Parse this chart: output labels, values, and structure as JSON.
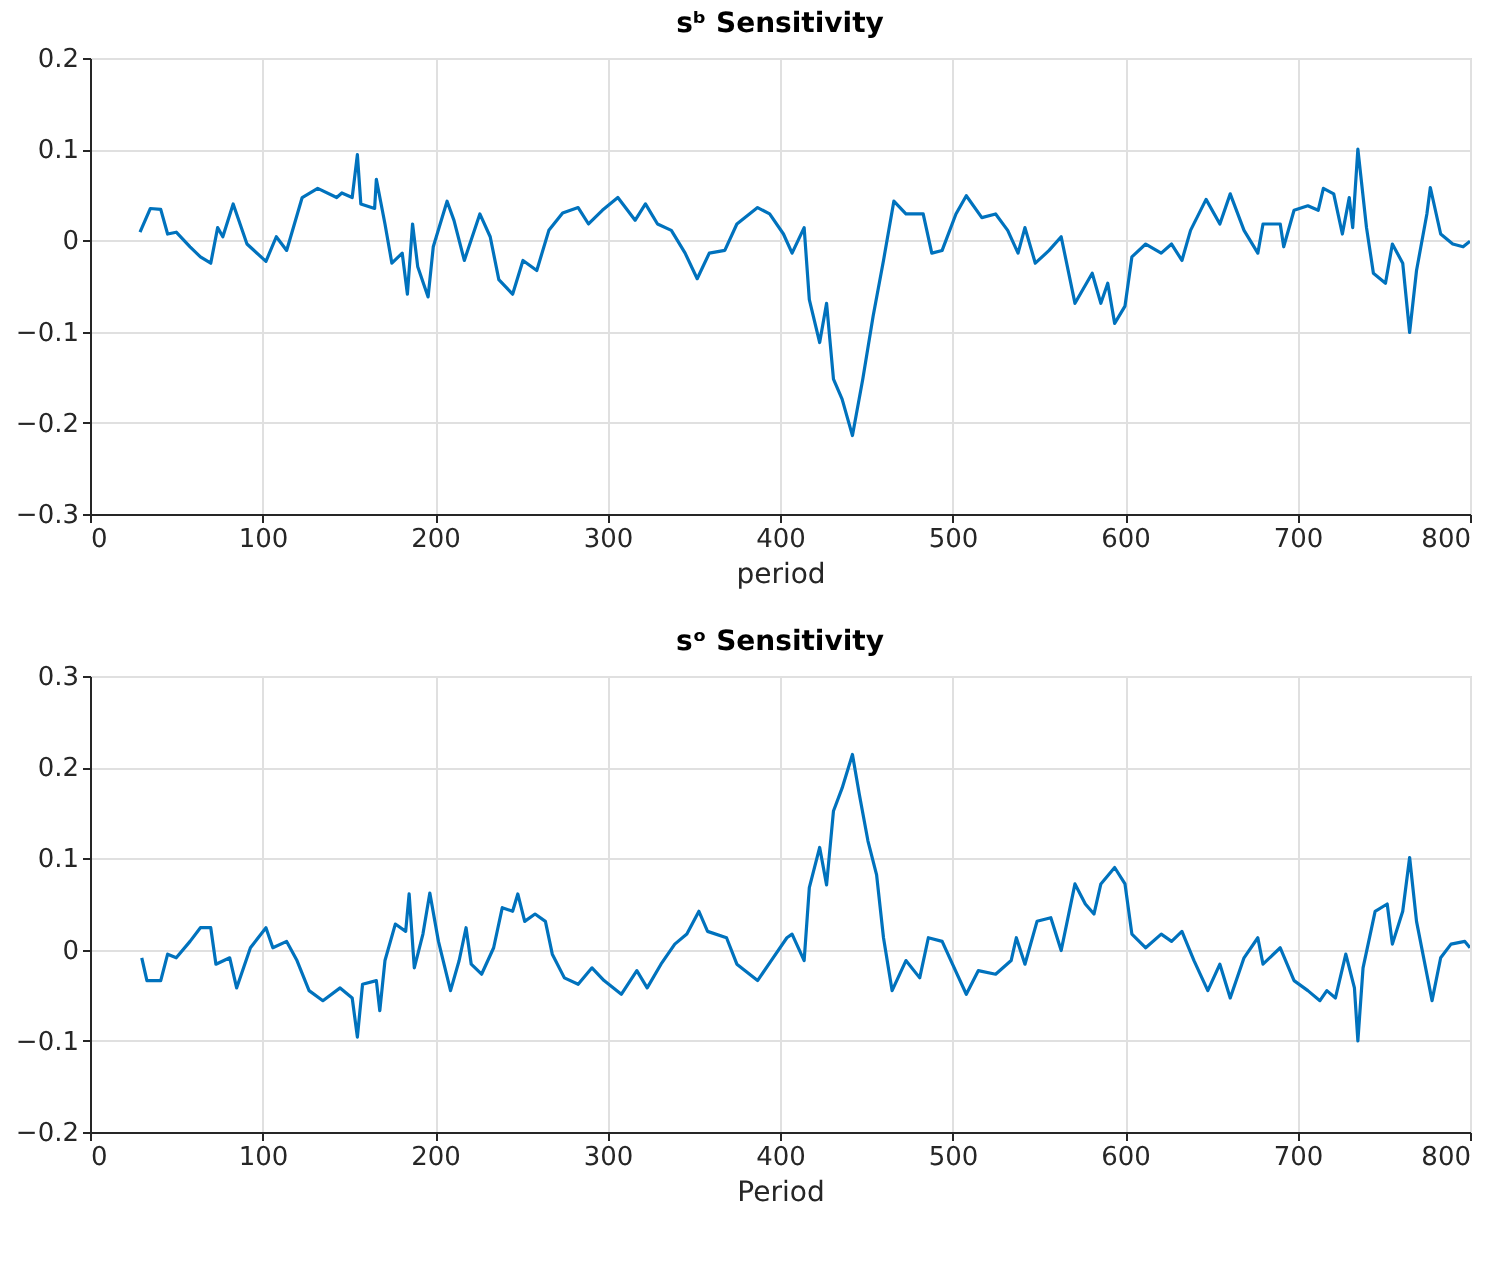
{
  "chart_data": [
    {
      "type": "line",
      "title": "sᵇ Sensitivity",
      "xlabel": "period",
      "xlim": [
        0,
        800
      ],
      "xticks": [
        0,
        100,
        200,
        300,
        400,
        500,
        600,
        700,
        800
      ],
      "ylim": [
        -0.3,
        0.2
      ],
      "yticks": [
        -0.3,
        -0.2,
        -0.1,
        0,
        0.1,
        0.2
      ],
      "grid": true,
      "series": [
        {
          "color": "#0072bd",
          "x": [
            29,
            35,
            41,
            45,
            50,
            58,
            64,
            70,
            74,
            77,
            83,
            91,
            102,
            108,
            114,
            123,
            132,
            143,
            146,
            152,
            155,
            157,
            165,
            166,
            171,
            175,
            181,
            184,
            187,
            190,
            196,
            199,
            207,
            211,
            217,
            226,
            232,
            237,
            245,
            251,
            259,
            266,
            274,
            283,
            289,
            297,
            306,
            316,
            322,
            329,
            337,
            345,
            352,
            359,
            368,
            375,
            387,
            394,
            402,
            407,
            414,
            417,
            423,
            427,
            431,
            436,
            442,
            448,
            454,
            460,
            466,
            473,
            483,
            488,
            494,
            502,
            508,
            517,
            525,
            532,
            538,
            542,
            548,
            556,
            563,
            571,
            581,
            586,
            590,
            594,
            600,
            604,
            612,
            621,
            627,
            633,
            638,
            647,
            655,
            661,
            669,
            677,
            680,
            690,
            692,
            698,
            706,
            712,
            715,
            721,
            726,
            730,
            732,
            735,
            740,
            744,
            751,
            755,
            761,
            765,
            769,
            775,
            777,
            783,
            790,
            796,
            800
          ],
          "values": [
            0.009,
            0.035,
            0.034,
            0.007,
            0.009,
            -0.007,
            -0.018,
            -0.025,
            0.014,
            0.004,
            0.04,
            -0.004,
            -0.023,
            0.004,
            -0.011,
            0.047,
            0.057,
            0.047,
            0.052,
            0.047,
            0.094,
            0.04,
            0.035,
            0.067,
            0.018,
            -0.025,
            -0.014,
            -0.059,
            0.018,
            -0.029,
            -0.062,
            -0.007,
            0.043,
            0.022,
            -0.022,
            0.029,
            0.004,
            -0.043,
            -0.059,
            -0.022,
            -0.033,
            0.011,
            0.03,
            0.036,
            0.018,
            0.033,
            0.047,
            0.022,
            0.04,
            0.018,
            0.011,
            -0.014,
            -0.042,
            -0.014,
            -0.011,
            0.018,
            0.036,
            0.029,
            0.007,
            -0.014,
            0.014,
            -0.065,
            -0.112,
            -0.069,
            -0.152,
            -0.174,
            -0.214,
            -0.152,
            -0.083,
            -0.022,
            0.043,
            0.029,
            0.029,
            -0.014,
            -0.011,
            0.029,
            0.049,
            0.025,
            0.029,
            0.011,
            -0.014,
            0.014,
            -0.025,
            -0.011,
            0.004,
            -0.069,
            -0.036,
            -0.069,
            -0.047,
            -0.091,
            -0.072,
            -0.018,
            -0.004,
            -0.014,
            -0.004,
            -0.022,
            0.011,
            0.045,
            0.018,
            0.051,
            0.011,
            -0.014,
            0.018,
            0.018,
            -0.007,
            0.033,
            0.038,
            0.033,
            0.057,
            0.051,
            0.007,
            0.047,
            0.014,
            0.1,
            0.014,
            -0.036,
            -0.047,
            -0.004,
            -0.025,
            -0.101,
            -0.033,
            0.029,
            0.058,
            0.007,
            -0.004,
            -0.007,
            -0.001
          ]
        }
      ]
    },
    {
      "type": "line",
      "title": "sᵒ Sensitivity",
      "xlabel": "Period",
      "xlim": [
        0,
        800
      ],
      "xticks": [
        0,
        100,
        200,
        300,
        400,
        500,
        600,
        700,
        800
      ],
      "ylim": [
        -0.2,
        0.3
      ],
      "yticks": [
        -0.2,
        -0.1,
        0,
        0.1,
        0.2,
        0.3
      ],
      "grid": true,
      "series": [
        {
          "color": "#0072bd",
          "x": [
            30,
            33,
            41,
            45,
            50,
            58,
            64,
            70,
            73,
            81,
            85,
            93,
            102,
            106,
            114,
            120,
            127,
            135,
            145,
            152,
            155,
            158,
            166,
            168,
            171,
            177,
            183,
            185,
            188,
            193,
            197,
            202,
            209,
            214,
            218,
            221,
            227,
            234,
            239,
            245,
            248,
            252,
            258,
            264,
            268,
            275,
            283,
            291,
            298,
            308,
            317,
            323,
            331,
            339,
            346,
            353,
            358,
            369,
            375,
            387,
            396,
            404,
            407,
            414,
            417,
            423,
            427,
            431,
            436,
            442,
            446,
            451,
            456,
            460,
            465,
            473,
            481,
            486,
            494,
            500,
            508,
            515,
            525,
            534,
            537,
            542,
            549,
            557,
            563,
            571,
            577,
            582,
            586,
            594,
            600,
            604,
            612,
            621,
            627,
            633,
            640,
            648,
            655,
            661,
            669,
            677,
            680,
            690,
            698,
            706,
            713,
            717,
            722,
            728,
            733,
            735,
            738,
            745,
            752,
            755,
            761,
            765,
            769,
            775,
            778,
            783,
            789,
            797,
            800
          ],
          "values": [
            -0.009,
            -0.034,
            -0.034,
            -0.005,
            -0.009,
            0.009,
            0.024,
            0.024,
            -0.016,
            -0.009,
            -0.042,
            0.002,
            0.024,
            0.002,
            0.009,
            -0.012,
            -0.045,
            -0.056,
            -0.042,
            -0.053,
            -0.096,
            -0.038,
            -0.034,
            -0.067,
            -0.012,
            0.028,
            0.02,
            0.061,
            -0.02,
            0.017,
            0.062,
            0.009,
            -0.045,
            -0.012,
            0.024,
            -0.016,
            -0.027,
            0.002,
            0.046,
            0.042,
            0.061,
            0.031,
            0.039,
            0.031,
            -0.005,
            -0.031,
            -0.038,
            -0.02,
            -0.034,
            -0.049,
            -0.023,
            -0.042,
            -0.016,
            0.006,
            0.017,
            0.042,
            0.02,
            0.013,
            -0.016,
            -0.034,
            -0.009,
            0.013,
            0.017,
            -0.012,
            0.068,
            0.112,
            0.071,
            0.152,
            0.177,
            0.214,
            0.17,
            0.119,
            0.082,
            0.013,
            -0.045,
            -0.012,
            -0.031,
            0.013,
            0.009,
            -0.016,
            -0.049,
            -0.023,
            -0.027,
            -0.012,
            0.013,
            -0.016,
            0.031,
            0.035,
            -0.001,
            0.072,
            0.05,
            0.039,
            0.072,
            0.09,
            0.072,
            0.017,
            0.002,
            0.017,
            0.009,
            0.02,
            -0.012,
            -0.045,
            -0.016,
            -0.053,
            -0.009,
            0.013,
            -0.016,
            0.002,
            -0.034,
            -0.045,
            -0.056,
            -0.045,
            -0.053,
            -0.005,
            -0.042,
            -0.1,
            -0.02,
            0.042,
            0.05,
            0.006,
            0.042,
            0.101,
            0.031,
            -0.027,
            -0.056,
            -0.009,
            0.006,
            0.009,
            0.002
          ]
        }
      ]
    }
  ]
}
